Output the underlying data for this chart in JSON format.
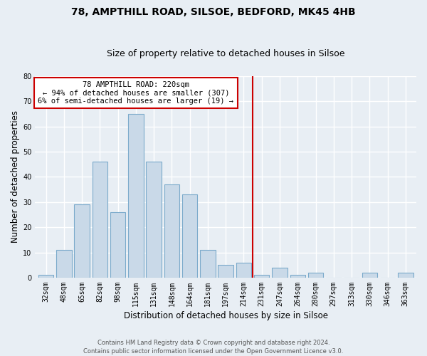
{
  "title1": "78, AMPTHILL ROAD, SILSOE, BEDFORD, MK45 4HB",
  "title2": "Size of property relative to detached houses in Silsoe",
  "xlabel": "Distribution of detached houses by size in Silsoe",
  "ylabel": "Number of detached properties",
  "categories": [
    "32sqm",
    "48sqm",
    "65sqm",
    "82sqm",
    "98sqm",
    "115sqm",
    "131sqm",
    "148sqm",
    "164sqm",
    "181sqm",
    "197sqm",
    "214sqm",
    "231sqm",
    "247sqm",
    "264sqm",
    "280sqm",
    "297sqm",
    "313sqm",
    "330sqm",
    "346sqm",
    "363sqm"
  ],
  "values": [
    1,
    11,
    29,
    46,
    26,
    65,
    46,
    37,
    33,
    11,
    5,
    6,
    1,
    4,
    1,
    2,
    0,
    0,
    2,
    0,
    2
  ],
  "bar_color": "#c9d9e8",
  "bar_edge_color": "#7baacb",
  "vline_x_index": 11.5,
  "vline_color": "#cc0000",
  "annotation_text": "78 AMPTHILL ROAD: 220sqm\n← 94% of detached houses are smaller (307)\n6% of semi-detached houses are larger (19) →",
  "annotation_box_color": "#cc0000",
  "ylim": [
    0,
    80
  ],
  "yticks": [
    0,
    10,
    20,
    30,
    40,
    50,
    60,
    70,
    80
  ],
  "footer": "Contains HM Land Registry data © Crown copyright and database right 2024.\nContains public sector information licensed under the Open Government Licence v3.0.",
  "bg_color": "#e8eef4",
  "plot_bg_color": "#e8eef4",
  "grid_color": "#ffffff",
  "title1_fontsize": 10,
  "title2_fontsize": 9,
  "axis_label_fontsize": 8.5,
  "tick_fontsize": 7,
  "footer_fontsize": 6,
  "annotation_fontsize": 7.5
}
